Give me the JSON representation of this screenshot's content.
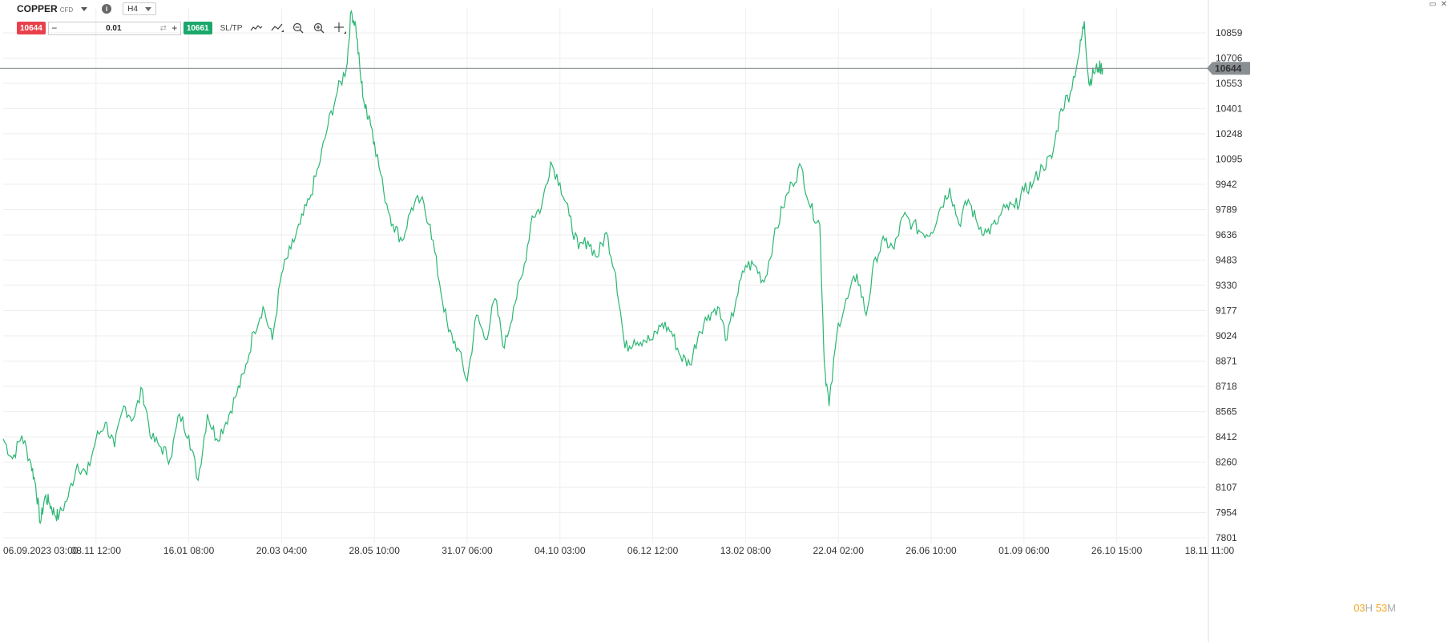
{
  "header": {
    "instrument": "COPPER",
    "instrument_type": "CFD",
    "timeframe": "H4"
  },
  "trade": {
    "sell_price": "10644",
    "buy_price": "10661",
    "quantity": "0.01",
    "minus_label": "−",
    "plus_label": "+",
    "sltp_label": "SL/TP"
  },
  "countdown": {
    "hours": "03",
    "hours_unit": "H",
    "minutes": "53",
    "minutes_unit": "M"
  },
  "colors": {
    "line": "#2bb673",
    "sell": "#e8414c",
    "buy": "#1aa86b",
    "price_line": "#8a8f94",
    "grid": "#eeeeee",
    "countdown": "#f5a623"
  },
  "chart_data": {
    "type": "line",
    "current_price": 10644,
    "current_price_label": "10644",
    "ylim": [
      7801,
      11012
    ],
    "y_ticks": [
      10859,
      10706,
      10553,
      10401,
      10248,
      10095,
      9942,
      9789,
      9636,
      9483,
      9330,
      9177,
      9024,
      8871,
      8718,
      8565,
      8412,
      8260,
      8107,
      7954,
      7801
    ],
    "x_ticks": [
      "06.09.2023 03:00",
      "08.11 12:00",
      "16.01 08:00",
      "20.03 04:00",
      "28.05 10:00",
      "31.07 06:00",
      "04.10 03:00",
      "06.12 12:00",
      "13.02 08:00",
      "22.04 02:00",
      "26.06 10:00",
      "01.09 06:00",
      "26.10 15:00",
      "18.11 11:00"
    ],
    "x_tick_index": [
      0,
      1,
      2,
      3,
      4,
      5,
      6,
      7,
      8,
      9,
      10,
      11,
      12,
      13
    ],
    "series": [
      {
        "x": [
          0,
          0.1,
          0.2,
          0.3,
          0.35,
          0.4,
          0.45,
          0.5,
          0.55,
          0.6,
          0.7,
          0.8,
          0.9,
          1.0,
          1.1,
          1.2,
          1.3,
          1.4,
          1.5,
          1.6,
          1.7,
          1.8,
          1.9,
          2.0,
          2.1,
          2.2,
          2.3,
          2.4,
          2.5,
          2.6,
          2.7,
          2.8,
          2.9,
          3.0,
          3.1,
          3.2,
          3.3,
          3.4,
          3.5,
          3.6,
          3.7,
          3.75,
          3.8,
          3.85,
          3.9,
          3.95,
          4.0,
          4.1,
          4.2,
          4.3,
          4.4,
          4.5,
          4.6,
          4.7,
          4.8,
          4.9,
          5.0,
          5.1,
          5.2,
          5.3,
          5.4,
          5.5,
          5.6,
          5.7,
          5.8,
          5.9,
          6.0,
          6.1,
          6.2,
          6.3,
          6.4,
          6.5,
          6.6,
          6.7,
          6.8,
          6.9,
          7.0,
          7.1,
          7.2,
          7.3,
          7.4,
          7.5,
          7.6,
          7.7,
          7.8,
          7.9,
          8.0,
          8.1,
          8.2,
          8.3,
          8.4,
          8.5,
          8.6,
          8.7,
          8.8,
          8.85,
          8.9,
          9.0,
          9.1,
          9.2,
          9.3,
          9.4,
          9.5,
          9.6,
          9.7,
          9.8,
          9.9,
          10.0,
          10.1,
          10.2,
          10.3,
          10.4,
          10.5,
          10.6,
          10.7,
          10.8,
          10.9,
          11.0,
          11.1,
          11.2,
          11.3,
          11.4,
          11.5,
          11.6,
          11.65,
          11.7,
          11.75,
          11.8,
          11.85
        ],
        "y": [
          8400,
          8280,
          8420,
          8250,
          8120,
          7890,
          8050,
          8010,
          7950,
          7930,
          8050,
          8250,
          8180,
          8400,
          8500,
          8350,
          8600,
          8520,
          8700,
          8400,
          8350,
          8280,
          8550,
          8420,
          8150,
          8550,
          8400,
          8500,
          8650,
          8800,
          9050,
          9200,
          9000,
          9400,
          9550,
          9700,
          9850,
          10050,
          10300,
          10500,
          10650,
          10990,
          10900,
          10600,
          10400,
          10350,
          10200,
          9900,
          9700,
          9600,
          9800,
          9850,
          9700,
          9350,
          9050,
          8950,
          8750,
          9150,
          9000,
          9250,
          8950,
          9200,
          9400,
          9750,
          9800,
          10080,
          9950,
          9750,
          9550,
          9600,
          9500,
          9650,
          9400,
          8950,
          9000,
          9000,
          9000,
          9100,
          9050,
          8900,
          8850,
          9050,
          9150,
          9200,
          9000,
          9250,
          9450,
          9450,
          9350,
          9600,
          9800,
          9950,
          10050,
          9800,
          9700,
          8850,
          8600,
          9100,
          9250,
          9400,
          9150,
          9500,
          9600,
          9550,
          9750,
          9700,
          9650,
          9650,
          9800,
          9920,
          9700,
          9850,
          9700,
          9650,
          9700,
          9800,
          9800,
          9900,
          9950,
          10050,
          10100,
          10400,
          10500,
          10750,
          10930,
          10550,
          10620,
          10650,
          10644
        ]
      }
    ]
  }
}
